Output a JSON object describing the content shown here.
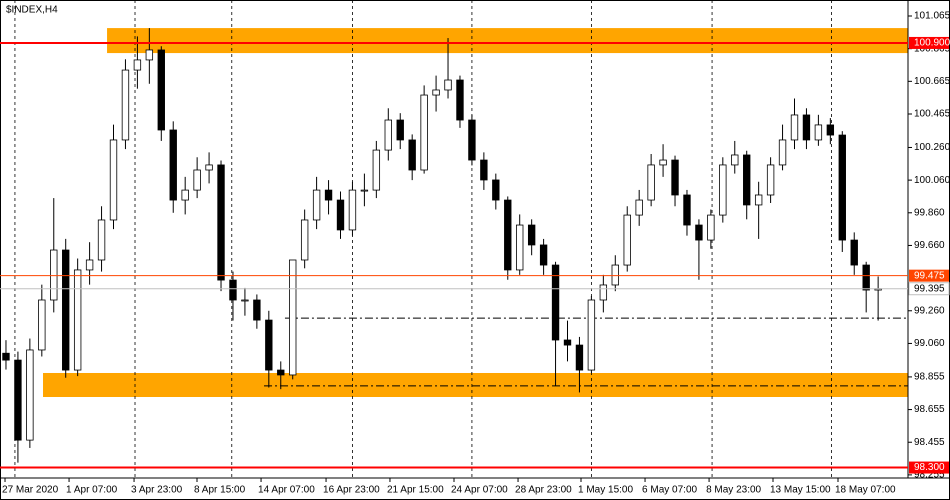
{
  "chart_data": {
    "type": "candlestick",
    "title": "$INDEX,H4",
    "xlim": [
      -0.5,
      75.5
    ],
    "ylim": [
      98.236,
      101.163
    ],
    "yticks": [
      101.065,
      100.865,
      100.665,
      100.465,
      {
        "value": 100.26,
        "label": "100.260"
      },
      {
        "value": 100.06,
        "label": "100.060"
      },
      {
        "value": 99.86,
        "label": "99.860"
      },
      {
        "value": 99.66,
        "label": "99.660"
      },
      {
        "value": 99.26,
        "label": "99.260"
      },
      {
        "value": 99.06,
        "label": "99.060"
      },
      98.855,
      98.655,
      98.455,
      98.255
    ],
    "xticks": [
      {
        "value": -0.08,
        "label": "27 Mar 2020"
      },
      {
        "value": 5.28,
        "label": "1 Apr 07:00"
      },
      {
        "value": 10.72,
        "label": "3 Apr 23:00"
      },
      {
        "value": 15.99,
        "label": "8 Apr 15:00"
      },
      {
        "value": 21.35,
        "label": "14 Apr 07:00"
      },
      {
        "value": 26.79,
        "label": "16 Apr 23:00"
      },
      {
        "value": 32.14,
        "label": "21 Apr 15:00"
      },
      {
        "value": 37.5,
        "label": "24 Apr 07:00"
      },
      {
        "value": 42.86,
        "label": "28 Apr 23:00"
      },
      {
        "value": 48.13,
        "label": "1 May 15:00"
      },
      {
        "value": 53.49,
        "label": "6 May 07:00"
      },
      {
        "value": 58.85,
        "label": "8 May 23:00"
      },
      {
        "value": 64.2,
        "label": "13 May 15:00"
      },
      {
        "value": 69.64,
        "label": "18 May 07:00"
      }
    ],
    "xgrid": [
      0.75,
      10.8,
      18.9,
      29,
      39,
      49,
      59.1,
      69.1
    ],
    "up_color": "#ffffff",
    "down_color": "#000000",
    "candles": [
      [
        99.0,
        99.08,
        98.9,
        98.958
      ],
      [
        98.958,
        99.01,
        98.33,
        98.468
      ],
      [
        98.468,
        99.09,
        98.42,
        99.02
      ],
      [
        99.02,
        99.42,
        98.98,
        99.326
      ],
      [
        99.326,
        99.95,
        99.25,
        99.632
      ],
      [
        99.632,
        99.7,
        98.85,
        98.897
      ],
      [
        98.897,
        99.58,
        98.86,
        99.51
      ],
      [
        99.51,
        99.68,
        99.42,
        99.571
      ],
      [
        99.571,
        99.9,
        99.5,
        99.816
      ],
      [
        99.816,
        100.4,
        99.76,
        100.306
      ],
      [
        100.306,
        100.8,
        100.25,
        100.734
      ],
      [
        100.734,
        100.94,
        100.62,
        100.796
      ],
      [
        100.796,
        100.991,
        100.65,
        100.857
      ],
      [
        100.857,
        100.88,
        100.3,
        100.367
      ],
      [
        100.367,
        100.42,
        99.86,
        99.938
      ],
      [
        99.938,
        100.08,
        99.85,
        99.999
      ],
      [
        99.999,
        100.2,
        99.95,
        100.122
      ],
      [
        100.122,
        100.23,
        100.04,
        100.153
      ],
      [
        100.153,
        100.18,
        99.38,
        99.448
      ],
      [
        99.448,
        99.5,
        99.2,
        99.326
      ],
      [
        99.326,
        99.4,
        99.23,
        99.326
      ],
      [
        99.326,
        99.36,
        99.15,
        99.203
      ],
      [
        99.203,
        99.26,
        98.79,
        98.897
      ],
      [
        98.897,
        98.95,
        98.78,
        98.867
      ],
      [
        98.867,
        99.56,
        98.84,
        99.571
      ],
      [
        99.571,
        99.88,
        99.52,
        99.816
      ],
      [
        99.816,
        100.08,
        99.76,
        99.999
      ],
      [
        99.999,
        100.06,
        99.85,
        99.938
      ],
      [
        99.938,
        99.99,
        99.7,
        99.755
      ],
      [
        99.755,
        100.05,
        99.72,
        99.999
      ],
      [
        99.999,
        100.1,
        99.9,
        99.999
      ],
      [
        99.999,
        100.3,
        99.95,
        100.244
      ],
      [
        100.244,
        100.5,
        100.18,
        100.428
      ],
      [
        100.428,
        100.47,
        100.25,
        100.306
      ],
      [
        100.306,
        100.34,
        100.06,
        100.122
      ],
      [
        100.122,
        100.64,
        100.1,
        100.581
      ],
      [
        100.581,
        100.7,
        100.48,
        100.612
      ],
      [
        100.612,
        100.93,
        100.56,
        100.673
      ],
      [
        100.673,
        100.7,
        100.38,
        100.428
      ],
      [
        100.428,
        100.46,
        100.15,
        100.183
      ],
      [
        100.183,
        100.23,
        100.0,
        100.061
      ],
      [
        100.061,
        100.1,
        99.88,
        99.938
      ],
      [
        99.938,
        99.96,
        99.45,
        99.51
      ],
      [
        99.51,
        99.85,
        99.48,
        99.785
      ],
      [
        99.785,
        99.82,
        99.6,
        99.663
      ],
      [
        99.663,
        99.7,
        99.48,
        99.54
      ],
      [
        99.54,
        99.56,
        98.8,
        99.081
      ],
      [
        99.081,
        99.2,
        98.95,
        99.05
      ],
      [
        99.05,
        99.1,
        98.76,
        98.897
      ],
      [
        98.897,
        99.35,
        98.88,
        99.326
      ],
      [
        99.326,
        99.48,
        99.25,
        99.418
      ],
      [
        99.418,
        99.6,
        99.38,
        99.54
      ],
      [
        99.54,
        99.9,
        99.5,
        99.846
      ],
      [
        99.846,
        100.0,
        99.78,
        99.938
      ],
      [
        99.938,
        100.22,
        99.9,
        100.153
      ],
      [
        100.153,
        100.28,
        100.08,
        100.183
      ],
      [
        100.183,
        100.21,
        99.9,
        99.969
      ],
      [
        99.969,
        100.0,
        99.72,
        99.785
      ],
      [
        99.785,
        99.82,
        99.45,
        99.693
      ],
      [
        99.693,
        99.88,
        99.64,
        99.846
      ],
      [
        99.846,
        100.2,
        99.8,
        100.153
      ],
      [
        100.153,
        100.3,
        100.1,
        100.214
      ],
      [
        100.214,
        100.24,
        99.82,
        99.908
      ],
      [
        99.908,
        100.05,
        99.7,
        99.969
      ],
      [
        99.969,
        100.2,
        99.92,
        100.153
      ],
      [
        100.153,
        100.4,
        100.12,
        100.306
      ],
      [
        100.306,
        100.56,
        100.25,
        100.459
      ],
      [
        100.459,
        100.5,
        100.25,
        100.306
      ],
      [
        100.306,
        100.46,
        100.27,
        100.398
      ],
      [
        100.398,
        100.44,
        100.28,
        100.336
      ],
      [
        100.336,
        100.36,
        99.62,
        99.693
      ],
      [
        99.693,
        99.74,
        99.48,
        99.54
      ],
      [
        99.54,
        99.56,
        99.25,
        99.387
      ],
      [
        99.387,
        99.47,
        99.2,
        99.395
      ]
    ],
    "zones": [
      {
        "from": 100.838,
        "to": 100.991,
        "start": 8.46,
        "color": "#ffa500"
      },
      {
        "from": 98.732,
        "to": 98.879,
        "start": 3.1,
        "color": "#ffa500"
      }
    ],
    "dash_levels": [
      {
        "value": 99.215,
        "start": 23.35,
        "color": "#000000"
      },
      {
        "value": 98.8,
        "start": 21.6,
        "color": "#000000"
      }
    ],
    "levels": [
      {
        "value": 100.9,
        "label": "100.900",
        "color": "#ff0000",
        "text_color": "#ffffff",
        "width": 2
      },
      {
        "value": 99.475,
        "label": "99.475",
        "color": "#ff4500",
        "text_color": "#ffffff",
        "width": 1
      },
      {
        "value": 99.395,
        "label": "99.395",
        "color": "#c0c0c0",
        "text_color": "#000000",
        "width": 1
      },
      {
        "value": 98.3,
        "label": "98.300",
        "color": "#ff0000",
        "text_color": "#ffffff",
        "width": 2
      }
    ]
  }
}
